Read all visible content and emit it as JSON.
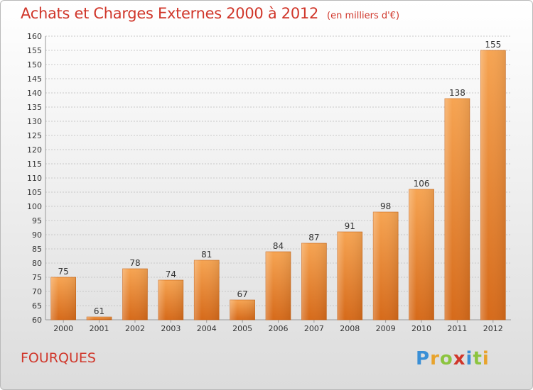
{
  "header": {
    "title": "Achats et Charges Externes 2000 à 2012",
    "subtitle": "(en milliers d'€)"
  },
  "footer": {
    "place": "FOURQUES",
    "logo": "Proxiti"
  },
  "colors": {
    "title": "#d0362a",
    "bar_light": "#f5a04e",
    "bar_dark": "#d96d1c"
  },
  "chart_data": {
    "type": "bar",
    "categories": [
      "2000",
      "2001",
      "2002",
      "2003",
      "2004",
      "2005",
      "2006",
      "2007",
      "2008",
      "2009",
      "2010",
      "2011",
      "2012"
    ],
    "values": [
      75,
      61,
      78,
      74,
      81,
      67,
      84,
      87,
      91,
      98,
      106,
      138,
      155
    ],
    "title": "Achats et Charges Externes 2000 à 2012",
    "subtitle": "(en milliers d'€)",
    "ylim": [
      60,
      160
    ],
    "ytick_step": 5,
    "grid": true,
    "data_labels": true
  }
}
